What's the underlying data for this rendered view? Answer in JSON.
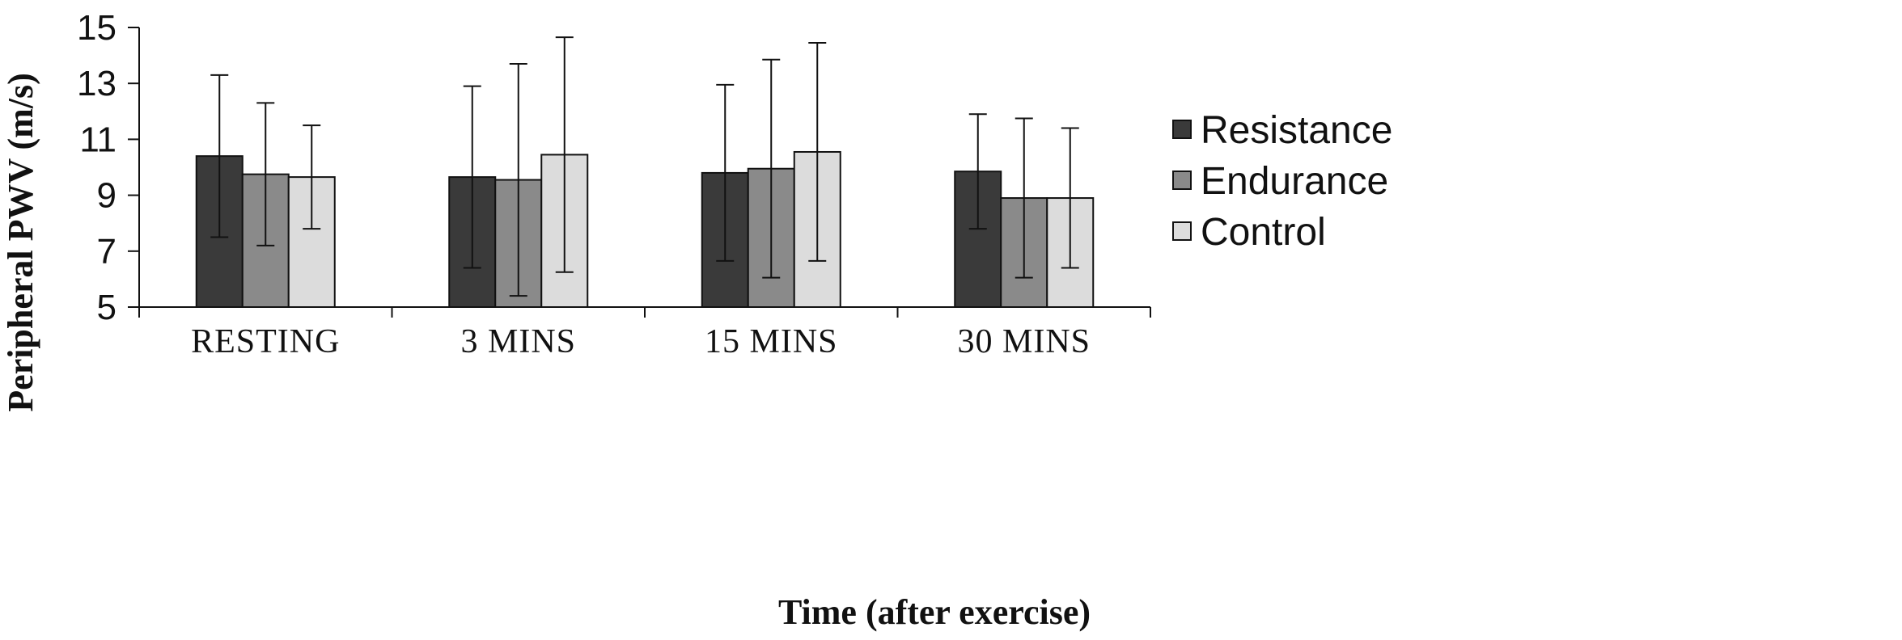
{
  "chart_data": {
    "type": "bar",
    "title": "",
    "xlabel": "Time (after exercise)",
    "ylabel": "Peripheral PWV (m/s)",
    "ylim": [
      5,
      15
    ],
    "yticks": [
      5,
      7,
      9,
      11,
      13,
      15
    ],
    "ytick_labels": [
      "5",
      "7",
      "9",
      "11",
      "13",
      "15"
    ],
    "categories": [
      "RESTING",
      "3 MINS",
      "15 MINS",
      "30 MINS"
    ],
    "legend_position": "right",
    "grid": false,
    "series": [
      {
        "name": "Resistance",
        "color": "#3a3a3a",
        "values": [
          10.4,
          9.65,
          9.8,
          9.85
        ],
        "error": [
          2.9,
          3.25,
          3.15,
          2.05
        ]
      },
      {
        "name": "Endurance",
        "color": "#8a8a8a",
        "values": [
          9.75,
          9.55,
          9.95,
          8.9
        ],
        "error": [
          2.55,
          4.15,
          3.9,
          2.85
        ]
      },
      {
        "name": "Control",
        "color": "#dcdcdc",
        "values": [
          9.65,
          10.45,
          10.55,
          8.9
        ],
        "error": [
          1.85,
          4.2,
          3.9,
          2.5
        ]
      }
    ]
  }
}
